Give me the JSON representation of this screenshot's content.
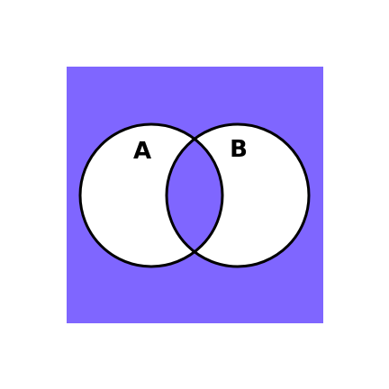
{
  "diagram": {
    "type": "venn",
    "description_kind": "symmetric-difference",
    "sets": [
      {
        "name": "A",
        "shaded": true
      },
      {
        "name": "B",
        "shaded": true
      }
    ],
    "intersection": {
      "shaded": false
    },
    "colors": {
      "background": "#ffffff",
      "region_fill": "#7f66ff",
      "set_fill": "#ffffff",
      "stroke": "#000000"
    }
  }
}
